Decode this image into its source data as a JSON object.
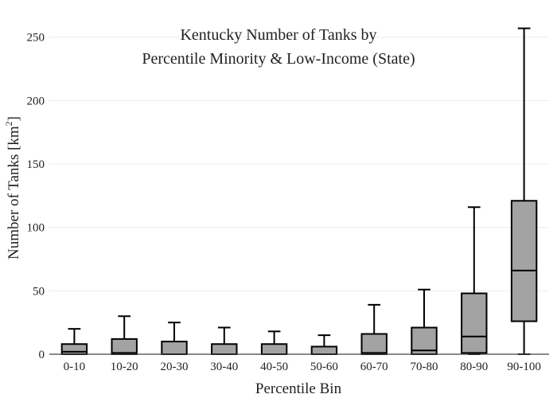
{
  "chart_data": {
    "type": "box",
    "title_line1": "Kentucky Number of Tanks by",
    "title_line2": "Percentile Minority & Low-Income (State)",
    "xlabel": "Percentile Bin",
    "ylabel_main": "Number of Tanks  [km",
    "ylabel_sup": "2",
    "ylabel_close": "]",
    "ylim": [
      0,
      258
    ],
    "yticks": [
      0,
      50,
      100,
      150,
      200,
      250
    ],
    "grid": true,
    "categories": [
      "0-10",
      "10-20",
      "20-30",
      "30-40",
      "40-50",
      "50-60",
      "60-70",
      "70-80",
      "80-90",
      "90-100"
    ],
    "boxes": [
      {
        "min": 0,
        "q1": 0,
        "median": 2,
        "q3": 8,
        "max": 20
      },
      {
        "min": 0,
        "q1": 0,
        "median": 1,
        "q3": 12,
        "max": 30
      },
      {
        "min": 0,
        "q1": 0,
        "median": 0,
        "q3": 10,
        "max": 25
      },
      {
        "min": 0,
        "q1": 0,
        "median": 0,
        "q3": 8,
        "max": 21
      },
      {
        "min": 0,
        "q1": 0,
        "median": 0,
        "q3": 8,
        "max": 18
      },
      {
        "min": 0,
        "q1": 0,
        "median": 0,
        "q3": 6,
        "max": 15
      },
      {
        "min": 0,
        "q1": 0,
        "median": 1,
        "q3": 16,
        "max": 39
      },
      {
        "min": 0,
        "q1": 0,
        "median": 3,
        "q3": 21,
        "max": 51
      },
      {
        "min": 0,
        "q1": 1,
        "median": 14,
        "q3": 48,
        "max": 116
      },
      {
        "min": 0,
        "q1": 26,
        "median": 66,
        "q3": 121,
        "max": 257
      }
    ]
  }
}
